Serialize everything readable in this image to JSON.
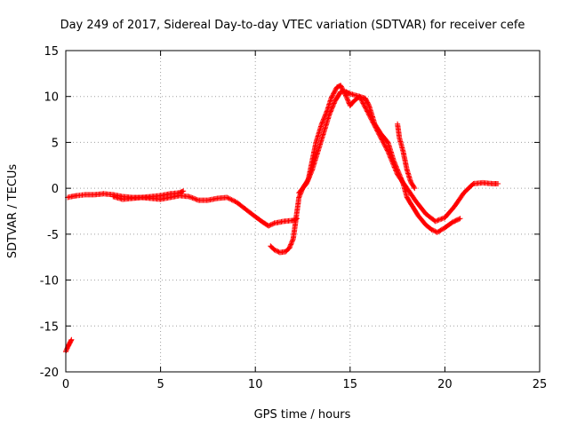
{
  "chart_data": {
    "type": "scatter",
    "title": "Day 249 of 2017, Sidereal Day-to-day VTEC variation (SDTVAR) for receiver cefe",
    "xlabel": "GPS time / hours",
    "ylabel": "SDTVAR / TECUs",
    "xlim": [
      0,
      25
    ],
    "ylim": [
      -20,
      15
    ],
    "grid": true,
    "x_ticks": [
      0,
      5,
      10,
      15,
      20,
      25
    ],
    "y_ticks": [
      -20,
      -15,
      -10,
      -5,
      0,
      5,
      10,
      15
    ],
    "x_tick_labels": [
      "0",
      "5",
      "10",
      "15",
      "20",
      "25"
    ],
    "y_tick_labels": [
      "-20",
      "-15",
      "-10",
      "-5",
      "0",
      "5",
      "10",
      "15"
    ],
    "marker": "+",
    "color": "#ff0000",
    "series": [
      {
        "name": "SDTVAR",
        "segments": [
          [
            [
              0.0,
              -17.8
            ],
            [
              0.1,
              -17.3
            ],
            [
              0.2,
              -16.9
            ],
            [
              0.3,
              -16.5
            ]
          ],
          [
            [
              0.1,
              -1.0
            ],
            [
              0.3,
              -0.9
            ],
            [
              0.6,
              -0.8
            ],
            [
              1.0,
              -0.7
            ],
            [
              1.5,
              -0.7
            ],
            [
              2.0,
              -0.6
            ],
            [
              2.5,
              -0.7
            ],
            [
              3.0,
              -0.9
            ],
            [
              3.5,
              -1.0
            ],
            [
              4.0,
              -1.0
            ],
            [
              4.5,
              -0.9
            ],
            [
              5.0,
              -0.8
            ],
            [
              5.5,
              -0.6
            ],
            [
              6.0,
              -0.5
            ],
            [
              6.2,
              -0.3
            ]
          ],
          [
            [
              2.5,
              -0.9
            ],
            [
              3.0,
              -1.2
            ],
            [
              3.5,
              -1.1
            ],
            [
              4.0,
              -1.0
            ],
            [
              4.5,
              -1.1
            ],
            [
              5.0,
              -1.2
            ],
            [
              5.5,
              -1.0
            ],
            [
              6.0,
              -0.8
            ],
            [
              6.5,
              -0.9
            ],
            [
              7.0,
              -1.3
            ],
            [
              7.5,
              -1.3
            ],
            [
              8.0,
              -1.1
            ],
            [
              8.5,
              -1.0
            ],
            [
              9.0,
              -1.5
            ],
            [
              9.5,
              -2.3
            ],
            [
              10.0,
              -3.1
            ],
            [
              10.4,
              -3.7
            ],
            [
              10.7,
              -4.1
            ],
            [
              11.0,
              -3.8
            ],
            [
              11.5,
              -3.6
            ],
            [
              12.0,
              -3.5
            ],
            [
              12.2,
              -3.3
            ]
          ],
          [
            [
              10.8,
              -6.3
            ],
            [
              11.0,
              -6.7
            ],
            [
              11.3,
              -7.0
            ],
            [
              11.6,
              -6.9
            ],
            [
              11.8,
              -6.5
            ],
            [
              12.0,
              -5.5
            ],
            [
              12.1,
              -4.0
            ],
            [
              12.2,
              -2.5
            ],
            [
              12.3,
              -1.0
            ],
            [
              12.5,
              0.0
            ],
            [
              12.8,
              1.0
            ],
            [
              13.0,
              3.0
            ],
            [
              13.2,
              5.0
            ],
            [
              13.5,
              7.0
            ],
            [
              13.8,
              8.5
            ],
            [
              14.0,
              9.8
            ],
            [
              14.3,
              11.0
            ],
            [
              14.5,
              11.2
            ],
            [
              14.8,
              10.0
            ],
            [
              15.0,
              9.0
            ],
            [
              15.2,
              9.5
            ],
            [
              15.5,
              10.0
            ],
            [
              15.8,
              9.8
            ],
            [
              16.0,
              9.0
            ],
            [
              16.3,
              7.0
            ],
            [
              16.6,
              6.0
            ],
            [
              17.0,
              5.0
            ],
            [
              17.3,
              3.0
            ],
            [
              17.5,
              2.0
            ],
            [
              17.8,
              0.5
            ],
            [
              18.0,
              -1.0
            ],
            [
              18.3,
              -2.0
            ],
            [
              18.6,
              -3.0
            ],
            [
              19.0,
              -4.0
            ],
            [
              19.3,
              -4.5
            ],
            [
              19.6,
              -4.8
            ],
            [
              20.0,
              -4.3
            ],
            [
              20.4,
              -3.7
            ],
            [
              20.8,
              -3.3
            ]
          ],
          [
            [
              17.5,
              7.0
            ],
            [
              17.6,
              5.5
            ],
            [
              17.8,
              4.0
            ],
            [
              18.0,
              2.0
            ],
            [
              18.2,
              0.7
            ],
            [
              18.4,
              0.0
            ]
          ],
          [
            [
              12.3,
              -0.5
            ],
            [
              12.7,
              0.5
            ],
            [
              13.0,
              2.0
            ],
            [
              13.3,
              4.0
            ],
            [
              13.6,
              6.0
            ],
            [
              13.9,
              8.0
            ],
            [
              14.2,
              9.5
            ],
            [
              14.5,
              10.5
            ],
            [
              14.8,
              10.5
            ],
            [
              15.0,
              10.3
            ],
            [
              15.5,
              10.0
            ],
            [
              16.0,
              8.0
            ],
            [
              16.5,
              6.0
            ],
            [
              17.0,
              4.0
            ],
            [
              17.5,
              1.5
            ],
            [
              18.0,
              0.0
            ],
            [
              18.5,
              -1.5
            ],
            [
              19.0,
              -2.8
            ],
            [
              19.5,
              -3.6
            ],
            [
              20.0,
              -3.2
            ],
            [
              20.5,
              -2.0
            ],
            [
              21.0,
              -0.5
            ],
            [
              21.5,
              0.5
            ],
            [
              22.0,
              0.6
            ],
            [
              22.5,
              0.5
            ],
            [
              22.8,
              0.5
            ]
          ]
        ]
      }
    ]
  }
}
